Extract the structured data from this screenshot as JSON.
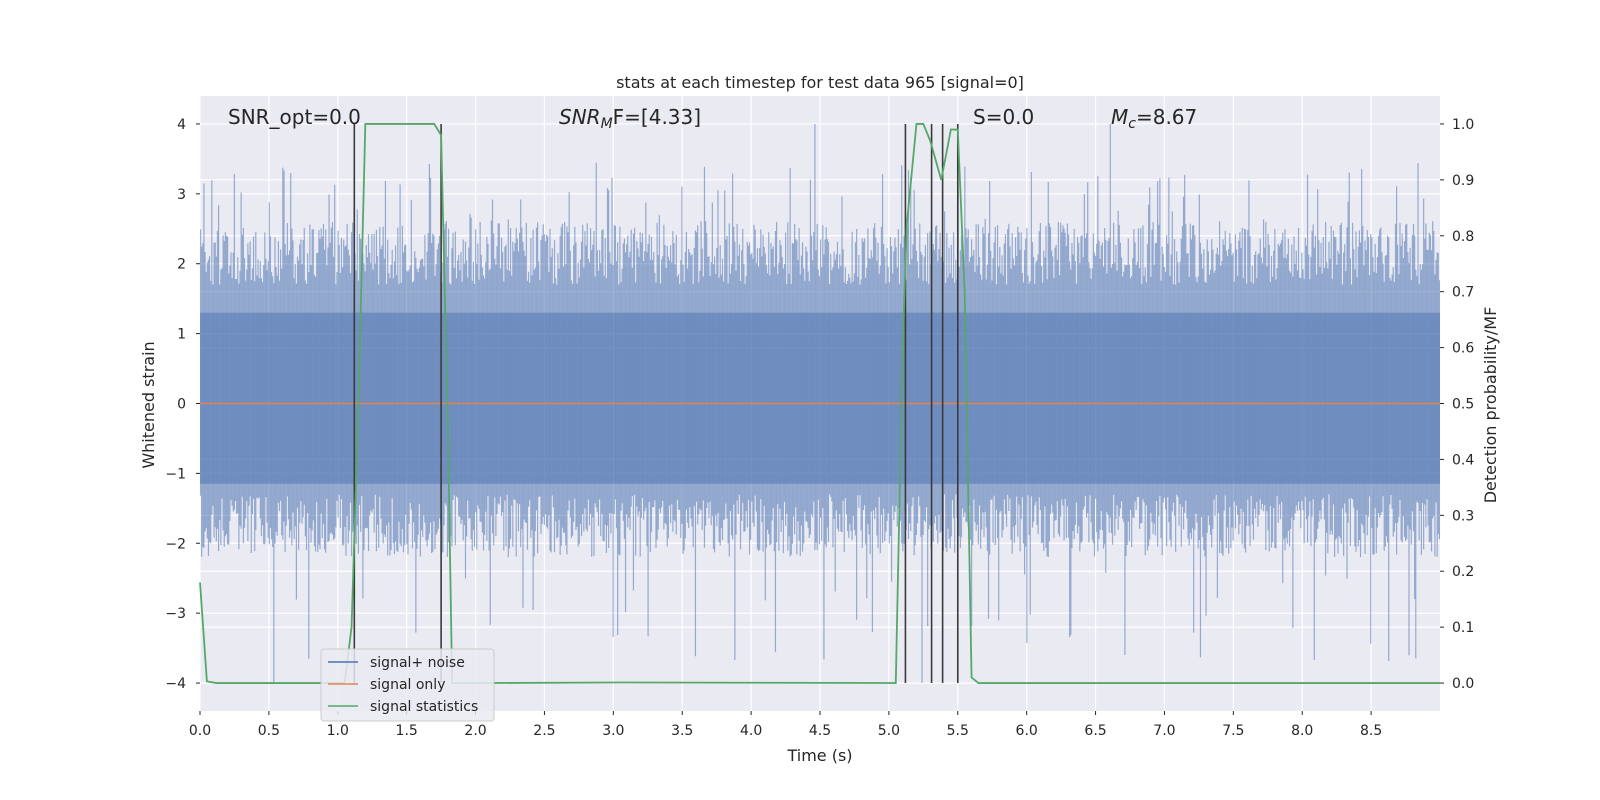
{
  "chart_data": {
    "type": "line",
    "title": "stats at each timestep for test data 965 [signal=0]",
    "xlabel": "Time (s)",
    "ylabel_left": "Whitened strain",
    "ylabel_right": "Detection probability/MF",
    "xlim": [
      0.0,
      9.0
    ],
    "ylim_left": [
      -4.4,
      4.4
    ],
    "ylim_right": [
      -0.05,
      1.05
    ],
    "x_ticks": [
      "0.0",
      "0.5",
      "1.0",
      "1.5",
      "2.0",
      "2.5",
      "3.0",
      "3.5",
      "4.0",
      "4.5",
      "5.0",
      "5.5",
      "6.0",
      "6.5",
      "7.0",
      "7.5",
      "8.0",
      "8.5"
    ],
    "x_tick_values": [
      0.0,
      0.5,
      1.0,
      1.5,
      2.0,
      2.5,
      3.0,
      3.5,
      4.0,
      4.5,
      5.0,
      5.5,
      6.0,
      6.5,
      7.0,
      7.5,
      8.0,
      8.5
    ],
    "y_left_ticks": [
      "4",
      "3",
      "2",
      "1",
      "0",
      "−1",
      "−2",
      "−3",
      "−4"
    ],
    "y_left_tick_values": [
      4,
      3,
      2,
      1,
      0,
      -1,
      -2,
      -3,
      -4
    ],
    "y_right_ticks": [
      "1.0",
      "0.9",
      "0.8",
      "0.7",
      "0.6",
      "0.5",
      "0.4",
      "0.3",
      "0.2",
      "0.1",
      "0.0"
    ],
    "y_right_tick_values": [
      1.0,
      0.9,
      0.8,
      0.7,
      0.6,
      0.5,
      0.4,
      0.3,
      0.2,
      0.1,
      0.0
    ],
    "grid": true,
    "legend_placement": "bottom-left",
    "series": [
      {
        "name": "signal+ noise",
        "axis": "left",
        "color": "#4c72b0",
        "description_type": "noise-band",
        "typical_envelope": [
          -1.8,
          2.3
        ],
        "peak_max": 4.0,
        "peak_min": -4.0
      },
      {
        "name": "signal only",
        "axis": "left",
        "color": "#dd8452",
        "x": [
          0.0,
          9.0
        ],
        "values": [
          0.0,
          0.0
        ]
      },
      {
        "name": "signal statistics",
        "axis": "right",
        "color": "#55a868",
        "x": [
          0.0,
          0.05,
          0.12,
          1.05,
          1.1,
          1.15,
          1.2,
          1.7,
          1.75,
          1.8,
          1.83,
          2.0,
          3.0,
          5.05,
          5.1,
          5.13,
          5.2,
          5.25,
          5.3,
          5.38,
          5.45,
          5.5,
          5.55,
          5.6,
          5.65,
          9.0
        ],
        "values": [
          0.18,
          0.003,
          0.0,
          0.0,
          0.1,
          0.5,
          1.0,
          1.0,
          0.98,
          0.45,
          0.0,
          0.0,
          0.001,
          0.0,
          0.6,
          0.82,
          1.0,
          1.0,
          0.97,
          0.9,
          0.99,
          0.99,
          0.7,
          0.01,
          0.0,
          0.0
        ]
      }
    ],
    "vertical_markers": [
      1.12,
      1.75,
      5.12,
      5.31,
      5.39,
      5.5
    ],
    "annotations": [
      "SNR_opt=0.0",
      "SNR",
      "M",
      "F=[4.33]",
      "S=0.0",
      "M",
      "c",
      "=8.67"
    ],
    "colors": {
      "plot_background": "#eaeaf2",
      "grid": "#ffffff",
      "noise": "#4c72b0",
      "signal_only": "#dd8452",
      "statistics": "#55a868",
      "marker": "#3a3a3a"
    }
  }
}
